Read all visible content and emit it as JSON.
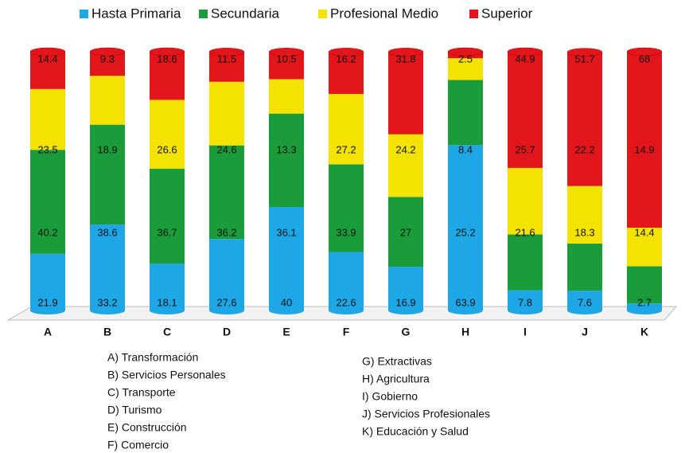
{
  "chart_data": {
    "type": "stacked_bar",
    "categories": [
      "A",
      "B",
      "C",
      "D",
      "E",
      "F",
      "G",
      "H",
      "I",
      "J",
      "K"
    ],
    "series": [
      {
        "name": "Hasta Primaria",
        "color": "#1ea7e6",
        "values": [
          21.9,
          33.2,
          18.1,
          27.6,
          40,
          22.6,
          16.9,
          63.9,
          7.8,
          7.6,
          2.7
        ]
      },
      {
        "name": "Secundaria",
        "color": "#1b9c3b",
        "values": [
          40.2,
          38.6,
          36.7,
          36.2,
          36.1,
          33.9,
          27,
          25.2,
          21.6,
          18.3,
          14.4
        ]
      },
      {
        "name": "Profesional Medio",
        "color": "#f4e300",
        "values": [
          23.5,
          18.9,
          26.6,
          24.6,
          13.3,
          27.2,
          24.2,
          8.4,
          25.7,
          22.2,
          14.9
        ]
      },
      {
        "name": "Superior",
        "color": "#e3161b",
        "values": [
          14.4,
          9.3,
          18.6,
          11.5,
          10.5,
          16.2,
          31.8,
          2.5,
          44.9,
          51.7,
          68
        ]
      }
    ],
    "ylim": [
      0,
      100
    ],
    "notes_left": [
      "A) Transformación",
      "B) Servicios Personales",
      "C) Transporte",
      "D) Turismo",
      "E) Construcción",
      "F) Comercio"
    ],
    "notes_right": [
      "G) Extractivas",
      "H) Agricultura",
      "I) Gobierno",
      "J) Servicios Profesionales",
      "K) Educación y Salud"
    ]
  }
}
